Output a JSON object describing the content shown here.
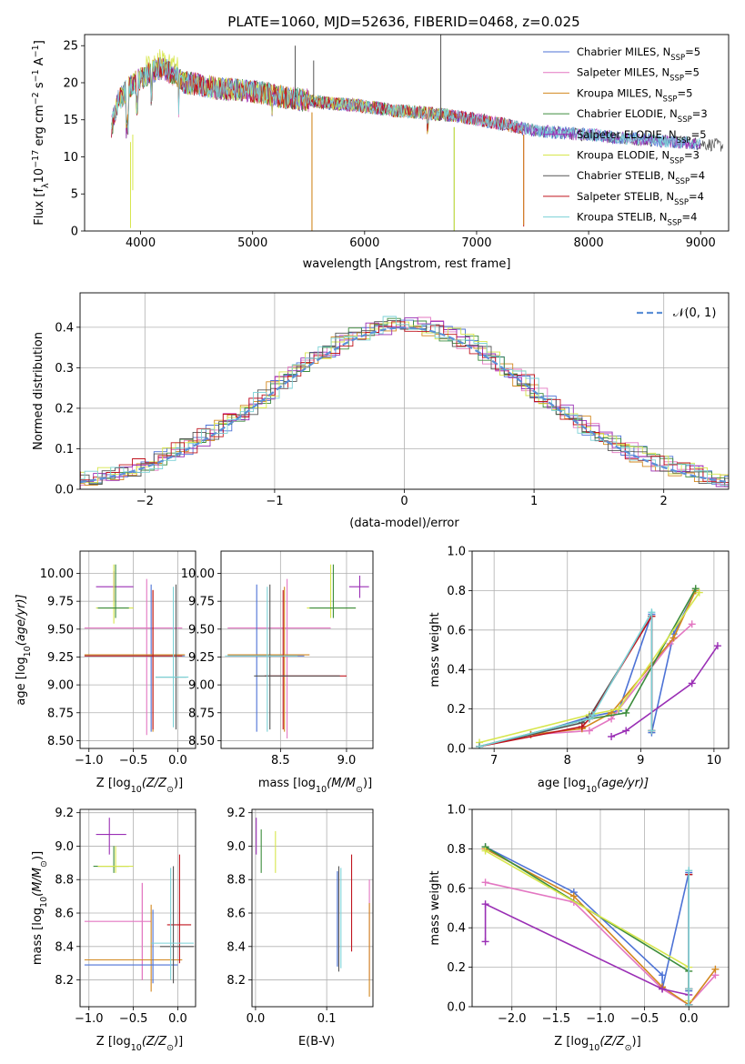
{
  "figure": {
    "title": "PLATE=1060, MJD=52636, FIBERID=0468, z=0.025"
  },
  "chart_data": [
    {
      "id": "spectrum",
      "type": "line",
      "title": "PLATE=1060, MJD=52636, FIBERID=0468, z=0.025",
      "xlabel": "wavelength [Angstrom, rest frame]",
      "ylabel": "Flux [f",
      "ylabel_sub": "λ",
      "ylabel_rest": "10",
      "ylabel_sup": "−17",
      "ylabel_tail": " erg cm",
      "ylabel_sup2": "−2",
      "ylabel_tail2": " s",
      "ylabel_sup3": "−1",
      "ylabel_tail3": " A",
      "ylabel_sup4": "−1",
      "ylabel_close": "]",
      "xlim": [
        3500,
        9250
      ],
      "ylim": [
        0,
        26.5
      ],
      "xticks": [
        4000,
        5000,
        6000,
        7000,
        8000,
        9000
      ],
      "yticks": [
        0,
        5,
        10,
        15,
        20,
        25
      ],
      "grid": false,
      "legend_placement": "top-right",
      "series": [
        {
          "name": "Chabrier MILES, N",
          "sub": "SSP",
          "tail": "=5",
          "color": "#4c72d6"
        },
        {
          "name": "Salpeter MILES, N",
          "sub": "SSP",
          "tail": "=5",
          "color": "#e377c2"
        },
        {
          "name": "Kroupa MILES, N",
          "sub": "SSP",
          "tail": "=5",
          "color": "#d2871e"
        },
        {
          "name": "Chabrier ELODIE, N",
          "sub": "SSP",
          "tail": "=3",
          "color": "#3c8c3c"
        },
        {
          "name": "Salpeter ELODIE, N",
          "sub": "SSP",
          "tail": "=5",
          "color": "#9a2fb5"
        },
        {
          "name": "Kroupa ELODIE, N",
          "sub": "SSP",
          "tail": "=3",
          "color": "#d7e64c"
        },
        {
          "name": "Chabrier STELIB, N",
          "sub": "SSP",
          "tail": "=4",
          "color": "#555555"
        },
        {
          "name": "Salpeter STELIB, N",
          "sub": "SSP",
          "tail": "=4",
          "color": "#c0141e"
        },
        {
          "name": "Kroupa STELIB, N",
          "sub": "SSP",
          "tail": "=4",
          "color": "#7ad1d6"
        }
      ],
      "spectrum_envelope": {
        "x": [
          3740,
          3800,
          3900,
          4000,
          4100,
          4200,
          4300,
          4400,
          4500,
          4700,
          4900,
          5100,
          5300,
          5500,
          5700,
          5900,
          6100,
          6300,
          6500,
          6700,
          6900,
          7100,
          7300,
          7420,
          7600,
          7800,
          8000,
          8200,
          8400,
          8600,
          8800,
          9000,
          9200
        ],
        "y": [
          14.0,
          17.5,
          19.5,
          20.5,
          21.5,
          22.0,
          21.0,
          20.0,
          19.8,
          19.2,
          19.0,
          18.6,
          18.0,
          17.6,
          17.2,
          17.0,
          16.6,
          16.2,
          16.0,
          15.7,
          15.3,
          14.8,
          14.2,
          13.8,
          13.4,
          13.2,
          13.0,
          12.7,
          12.5,
          12.2,
          12.0,
          11.8,
          11.5
        ]
      }
    },
    {
      "id": "residuals",
      "type": "line",
      "xlabel": "(data-model)/error",
      "ylabel": "Normed distribution",
      "xlim": [
        -2.5,
        2.5
      ],
      "ylim": [
        0,
        0.485
      ],
      "xticks": [
        -2,
        -1,
        0,
        1,
        2
      ],
      "yticks": [
        0.0,
        0.1,
        0.2,
        0.3,
        0.4
      ],
      "grid": true,
      "legend_placement": "top-right",
      "legend_label": "𝒩(0, 1)",
      "normal_color": "#5b8fd6"
    },
    {
      "id": "age_vs_Z",
      "type": "scatter",
      "xlabel": "Z [log",
      "xlabel_sub": "10",
      "xlabel_tail": "(Z/Z",
      "xlabel_sub2": "⊙",
      "xlabel_close": ")]",
      "ylabel": "age  [log",
      "ylabel_sub": "10",
      "ylabel_tail": "(age/yr)]",
      "xlim": [
        -1.1,
        0.2
      ],
      "ylim": [
        8.43,
        10.2
      ],
      "xticks": [
        -1.0,
        -0.5,
        0.0
      ],
      "yticks": [
        8.5,
        8.75,
        9.0,
        9.25,
        9.5,
        9.75,
        10.0
      ],
      "grid": true
    },
    {
      "id": "age_vs_mass",
      "type": "scatter",
      "xlabel": "mass [log",
      "xlabel_sub": "10",
      "xlabel_tail": "(M/M",
      "xlabel_sub2": "⊙",
      "xlabel_close": ")]",
      "xlim": [
        8.05,
        9.2
      ],
      "ylim": [
        8.43,
        10.2
      ],
      "xticks": [
        8.5,
        9.0
      ],
      "yticks": [
        8.5,
        8.75,
        9.0,
        9.25,
        9.5,
        9.75,
        10.0
      ],
      "grid": true
    },
    {
      "id": "weight_vs_age",
      "type": "line",
      "xlabel": "age  [log",
      "xlabel_sub": "10",
      "xlabel_tail": "(age/yr)]",
      "ylabel": "mass weight",
      "xlim": [
        6.7,
        10.2
      ],
      "ylim": [
        0,
        1
      ],
      "xticks": [
        7,
        8,
        9,
        10
      ],
      "yticks": [
        0.0,
        0.2,
        0.4,
        0.6,
        0.8,
        1.0
      ],
      "grid": true,
      "series": [
        {
          "color": "#4c72d6",
          "x": [
            6.8,
            7.5,
            8.3,
            8.7,
            9.15,
            9.15,
            9.45,
            9.75
          ],
          "y": [
            0.01,
            0.07,
            0.16,
            0.19,
            0.68,
            0.08,
            0.58,
            0.8
          ]
        },
        {
          "color": "#e377c2",
          "x": [
            6.8,
            7.5,
            8.3,
            8.6,
            9.4,
            9.7
          ],
          "y": [
            0.01,
            0.07,
            0.09,
            0.15,
            0.53,
            0.63
          ]
        },
        {
          "color": "#d2871e",
          "x": [
            6.8,
            7.5,
            8.2,
            8.6,
            9.45,
            9.75
          ],
          "y": [
            0.01,
            0.07,
            0.1,
            0.18,
            0.56,
            0.8
          ]
        },
        {
          "color": "#3c8c3c",
          "x": [
            6.8,
            8.3,
            8.8,
            9.75
          ],
          "y": [
            0.01,
            0.15,
            0.18,
            0.81
          ]
        },
        {
          "color": "#9a2fb5",
          "x": [
            8.6,
            8.8,
            9.7,
            10.05
          ],
          "y": [
            0.06,
            0.09,
            0.33,
            0.52
          ]
        },
        {
          "color": "#d7e64c",
          "x": [
            6.8,
            8.3,
            8.7,
            9.8
          ],
          "y": [
            0.03,
            0.17,
            0.2,
            0.79
          ]
        },
        {
          "color": "#555555",
          "x": [
            6.8,
            8.2,
            8.3,
            9.15,
            9.15
          ],
          "y": [
            0.01,
            0.13,
            0.16,
            0.67,
            0.09
          ]
        },
        {
          "color": "#c0141e",
          "x": [
            6.8,
            8.2,
            8.3,
            9.15,
            9.15
          ],
          "y": [
            0.01,
            0.11,
            0.15,
            0.67,
            0.09
          ]
        },
        {
          "color": "#7ad1d6",
          "x": [
            6.8,
            8.3,
            8.35,
            9.15,
            9.15
          ],
          "y": [
            0.01,
            0.15,
            0.17,
            0.69,
            0.09
          ]
        }
      ]
    },
    {
      "id": "mass_vs_Z",
      "type": "scatter",
      "xlabel": "Z [log",
      "xlabel_sub": "10",
      "xlabel_tail": "(Z/Z",
      "xlabel_sub2": "⊙",
      "xlabel_close": ")]",
      "ylabel": "mass [log",
      "ylabel_sub": "10",
      "ylabel_tail": "(M/M",
      "ylabel_sub2": "⊙",
      "ylabel_close": ")]",
      "xlim": [
        -1.1,
        0.2
      ],
      "ylim": [
        8.04,
        9.22
      ],
      "xticks": [
        -1.0,
        -0.5,
        0.0
      ],
      "yticks": [
        8.2,
        8.4,
        8.6,
        8.8,
        9.0,
        9.2
      ],
      "grid": true
    },
    {
      "id": "mass_vs_ebv",
      "type": "scatter",
      "xlabel": "E(B-V)",
      "xlim": [
        -0.005,
        0.165
      ],
      "ylim": [
        8.04,
        9.22
      ],
      "xticks": [
        0.0,
        0.1
      ],
      "yticks": [
        8.2,
        8.4,
        8.6,
        8.8,
        9.0,
        9.2
      ],
      "grid": true
    },
    {
      "id": "weight_vs_Z",
      "type": "line",
      "xlabel": "Z [log",
      "xlabel_sub": "10",
      "xlabel_tail": "(Z/Z",
      "xlabel_sub2": "⊙",
      "xlabel_close": ")]",
      "ylabel": "mass weight",
      "xlim": [
        -2.45,
        0.45
      ],
      "ylim": [
        0,
        1
      ],
      "xticks": [
        -2.0,
        -1.5,
        -1.0,
        -0.5,
        0.0
      ],
      "yticks": [
        0.0,
        0.2,
        0.4,
        0.6,
        0.8,
        1.0
      ],
      "grid": true,
      "series": [
        {
          "color": "#4c72d6",
          "x": [
            -2.3,
            -1.3,
            -0.3,
            -0.3,
            0.0,
            0.0,
            0.0
          ],
          "y": [
            0.81,
            0.58,
            0.16,
            0.09,
            0.68,
            0.08,
            0.01
          ]
        },
        {
          "color": "#e377c2",
          "x": [
            -2.3,
            -1.3,
            -0.3,
            0.0,
            0.3
          ],
          "y": [
            0.63,
            0.53,
            0.09,
            0.01,
            0.16
          ]
        },
        {
          "color": "#d2871e",
          "x": [
            -2.3,
            -1.3,
            -0.3,
            0.0,
            0.3
          ],
          "y": [
            0.8,
            0.56,
            0.1,
            0.01,
            0.19
          ]
        },
        {
          "color": "#3c8c3c",
          "x": [
            -2.3,
            0.0,
            0.0
          ],
          "y": [
            0.81,
            0.18,
            0.01
          ]
        },
        {
          "color": "#9a2fb5",
          "x": [
            -2.3,
            -2.3,
            -0.3,
            0.0
          ],
          "y": [
            0.33,
            0.52,
            0.09,
            0.06
          ]
        },
        {
          "color": "#d7e64c",
          "x": [
            -2.3,
            0.0,
            0.0
          ],
          "y": [
            0.79,
            0.2,
            0.03
          ]
        },
        {
          "color": "#555555",
          "x": [
            0.0,
            0.0,
            0.0
          ],
          "y": [
            0.67,
            0.09,
            0.01
          ]
        },
        {
          "color": "#c0141e",
          "x": [
            0.0,
            0.0,
            0.0
          ],
          "y": [
            0.67,
            0.09,
            0.01
          ]
        },
        {
          "color": "#7ad1d6",
          "x": [
            0.0,
            0.0,
            0.0
          ],
          "y": [
            0.69,
            0.09,
            0.01
          ]
        }
      ]
    }
  ]
}
